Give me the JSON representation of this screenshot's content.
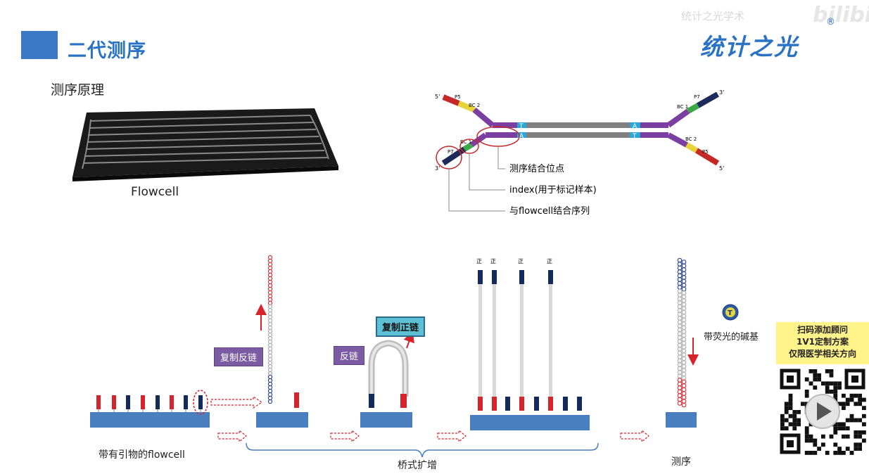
{
  "header": {
    "title": "二代测序",
    "brand": "统计之光",
    "brand_mark": "®",
    "watermark": "统计之光学术",
    "watermark_logo": "bilibili"
  },
  "section_label": "测序原理",
  "flowcell": {
    "label": "Flowcell"
  },
  "adapter_diagram": {
    "left_end_labels": [
      "5'",
      "3'"
    ],
    "right_end_labels": [
      "3'",
      "5'"
    ],
    "segment_labels": {
      "p5": "P5",
      "p7": "P7",
      "bc1": "BC 1",
      "bc2": "BC 2"
    },
    "overhang_top": "T",
    "overhang_a": "A",
    "callouts": [
      "测序结合位点",
      "index(用于标记样本)",
      "与flowcell结合序列"
    ]
  },
  "process": {
    "stage1_label": "带有引物的flowcell",
    "stage2_tag": "复制反链",
    "stage3_tag_left": "反链",
    "stage3_tag_right": "复制正链",
    "strand_marks": [
      "正",
      "正",
      "正",
      "正"
    ],
    "bridge_label": "桥式扩增",
    "sequencing_label": "测序",
    "fluorescent_base_letter": "T",
    "fluorescent_label": "带荧光的碱基"
  },
  "qr": {
    "lines": [
      "扫码添加顾问",
      "1V1定制方案",
      "仅限医学相关方向"
    ]
  },
  "colors": {
    "accent": "#2a72c4",
    "red": "#d7232b",
    "navy": "#142a5c",
    "purple": "#7b5ca3",
    "plate": "#4a7fbf"
  }
}
